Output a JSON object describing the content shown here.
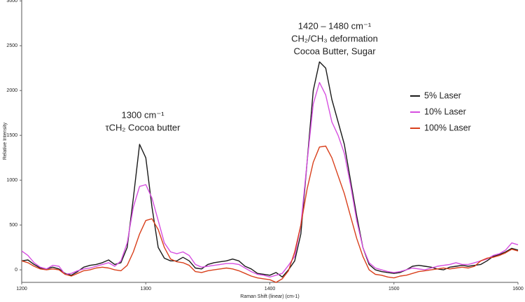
{
  "chart_data": {
    "type": "line",
    "annotations": [
      [
        "1300 cm⁻¹",
        "τCH₂ Cocoa butter"
      ],
      [
        "1420 – 1480 cm⁻¹",
        "CH₂/CH₃ deformation",
        "Cocoa Butter, Sugar"
      ]
    ],
    "x_label": "Raman Shift (linear) (cm-1)",
    "y_label": "Relative Intensity",
    "x": [
      1200,
      1205,
      1210,
      1215,
      1220,
      1225,
      1230,
      1235,
      1240,
      1245,
      1250,
      1255,
      1260,
      1265,
      1270,
      1275,
      1280,
      1285,
      1290,
      1295,
      1300,
      1305,
      1310,
      1315,
      1320,
      1325,
      1330,
      1335,
      1340,
      1345,
      1350,
      1355,
      1360,
      1365,
      1370,
      1375,
      1380,
      1385,
      1390,
      1395,
      1400,
      1405,
      1410,
      1415,
      1420,
      1425,
      1430,
      1435,
      1440,
      1445,
      1450,
      1455,
      1460,
      1465,
      1470,
      1475,
      1480,
      1485,
      1490,
      1495,
      1500,
      1505,
      1510,
      1515,
      1520,
      1525,
      1530,
      1535,
      1540,
      1545,
      1550,
      1555,
      1560,
      1565,
      1570,
      1575,
      1580,
      1585,
      1590,
      1595,
      1600
    ],
    "series": [
      {
        "name": "5% Laser",
        "color": "#1a1a1a",
        "values": [
          100,
          110,
          60,
          20,
          10,
          30,
          10,
          -40,
          -60,
          -20,
          30,
          50,
          60,
          80,
          110,
          60,
          80,
          250,
          800,
          1400,
          1250,
          700,
          250,
          130,
          100,
          100,
          140,
          100,
          20,
          10,
          60,
          80,
          90,
          100,
          120,
          100,
          40,
          10,
          -40,
          -50,
          -60,
          -30,
          -80,
          0,
          100,
          400,
          1200,
          2000,
          2320,
          2250,
          1900,
          1650,
          1400,
          1000,
          600,
          250,
          60,
          0,
          -20,
          -30,
          -40,
          -30,
          0,
          40,
          50,
          40,
          30,
          10,
          0,
          30,
          40,
          50,
          40,
          50,
          60,
          100,
          150,
          170,
          200,
          240,
          220
        ]
      },
      {
        "name": "10% Laser",
        "color": "#d64fe0",
        "values": [
          210,
          160,
          80,
          30,
          10,
          50,
          40,
          -50,
          -40,
          -10,
          10,
          20,
          40,
          60,
          80,
          40,
          100,
          300,
          700,
          930,
          950,
          800,
          550,
          300,
          200,
          180,
          200,
          160,
          60,
          30,
          40,
          50,
          60,
          70,
          70,
          60,
          20,
          -20,
          -50,
          -60,
          -80,
          -60,
          -40,
          50,
          150,
          500,
          1200,
          1850,
          2090,
          1950,
          1650,
          1500,
          1300,
          950,
          550,
          250,
          80,
          20,
          0,
          -20,
          -30,
          -20,
          0,
          20,
          10,
          0,
          20,
          40,
          50,
          60,
          80,
          60,
          60,
          80,
          100,
          120,
          160,
          180,
          220,
          300,
          280
        ]
      },
      {
        "name": "100% Laser",
        "color": "#d9401c",
        "values": [
          100,
          80,
          40,
          10,
          0,
          10,
          0,
          -50,
          -70,
          -40,
          -10,
          0,
          20,
          30,
          20,
          0,
          -10,
          50,
          200,
          400,
          550,
          570,
          450,
          250,
          120,
          90,
          80,
          50,
          -20,
          -30,
          -10,
          0,
          10,
          20,
          10,
          -10,
          -40,
          -70,
          -90,
          -100,
          -110,
          -140,
          -100,
          -10,
          200,
          500,
          900,
          1200,
          1370,
          1380,
          1250,
          1050,
          850,
          600,
          350,
          150,
          0,
          -50,
          -60,
          -80,
          -90,
          -70,
          -60,
          -40,
          -20,
          -10,
          0,
          10,
          20,
          10,
          20,
          30,
          20,
          40,
          100,
          130,
          140,
          160,
          190,
          230,
          210
        ]
      }
    ],
    "xlim": [
      1200,
      1600
    ],
    "ylim": [
      -140,
      3010
    ],
    "xticks": [
      1200,
      1300,
      1400,
      1500,
      1600
    ],
    "yticks": [
      0,
      500,
      1000,
      1500,
      2000,
      2500,
      3000
    ],
    "legend": "right",
    "grid": false
  }
}
